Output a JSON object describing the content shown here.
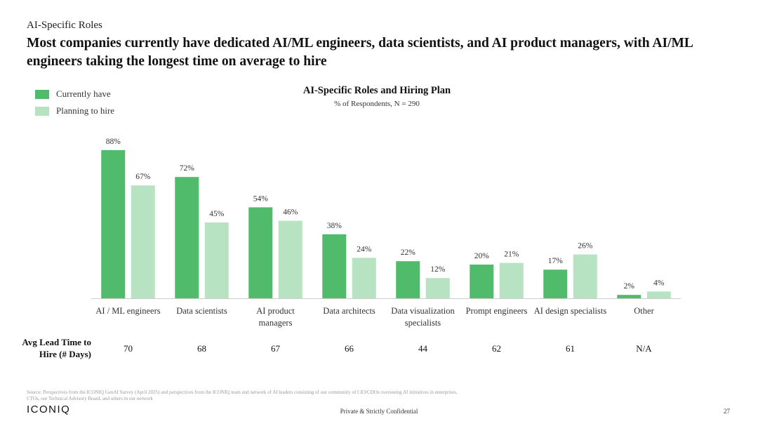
{
  "header": {
    "section_label": "AI-Specific Roles",
    "headline": "Most companies currently have dedicated AI/ML engineers, data scientists, and AI product managers, with AI/ML engineers taking the longest time on average to hire"
  },
  "colors": {
    "current": "#4fbb6b",
    "planning": "#b7e3c2",
    "axis": "#cccccc"
  },
  "chart_data": {
    "type": "bar",
    "title": "AI-Specific Roles and Hiring Plan",
    "subtitle": "% of Respondents, N = 290",
    "categories": [
      [
        "AI / ML engineers"
      ],
      [
        "Data scientists"
      ],
      [
        "AI product",
        "managers"
      ],
      [
        "Data architects"
      ],
      [
        "Data visualization",
        "specialists"
      ],
      [
        "Prompt engineers"
      ],
      [
        "AI design specialists"
      ],
      [
        "Other"
      ]
    ],
    "series": [
      {
        "name": "Currently have",
        "values": [
          88,
          72,
          54,
          38,
          22,
          20,
          17,
          2
        ]
      },
      {
        "name": "Planning to hire",
        "values": [
          67,
          45,
          46,
          24,
          12,
          21,
          26,
          4
        ]
      }
    ],
    "ylim": [
      0,
      100
    ],
    "value_suffix": "%",
    "legend_position": "top-left",
    "grid": false
  },
  "lead_time": {
    "label_line1": "Avg Lead Time to",
    "label_line2": "Hire (# Days)",
    "values": [
      "70",
      "68",
      "67",
      "66",
      "44",
      "62",
      "61",
      "N/A"
    ]
  },
  "footer": {
    "source": "Source: Perspectives from the ICONIQ GenAI Survey (April 2025) and perspectives from the ICONIQ team and network of AI leaders consisting of our community of CIO/CDOs overseeing AI initiatives in enterprises, CTOs, our Technical Advisory Board, and others in our network",
    "logo": "ICONIQ",
    "confidential": "Private & Strictly Confidential",
    "page_number": "27"
  }
}
